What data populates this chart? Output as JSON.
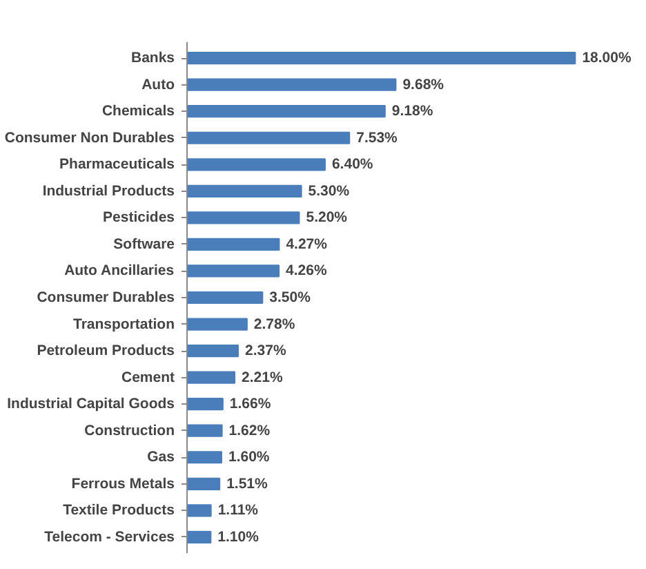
{
  "chart_data": {
    "type": "bar",
    "orientation": "horizontal",
    "categories": [
      "Banks",
      "Auto",
      "Chemicals",
      "Consumer Non Durables",
      "Pharmaceuticals",
      "Industrial Products",
      "Pesticides",
      "Software",
      "Auto Ancillaries",
      "Consumer Durables",
      "Transportation",
      "Petroleum Products",
      "Cement",
      "Industrial Capital Goods",
      "Construction",
      "Gas",
      "Ferrous Metals",
      "Textile Products",
      "Telecom - Services"
    ],
    "values": [
      18.0,
      9.68,
      9.18,
      7.53,
      6.4,
      5.3,
      5.2,
      4.27,
      4.26,
      3.5,
      2.78,
      2.37,
      2.21,
      1.66,
      1.62,
      1.6,
      1.51,
      1.11,
      1.1
    ],
    "color": "#4a7ebb",
    "value_labels": [
      "18.00%",
      "9.68%",
      "9.18%",
      "7.53%",
      "6.40%",
      "5.30%",
      "5.20%",
      "4.27%",
      "4.26%",
      "3.50%",
      "2.78%",
      "2.37%",
      "2.21%",
      "1.66%",
      "1.62%",
      "1.60%",
      "1.51%",
      "1.11%",
      "1.10%"
    ],
    "grid": false
  }
}
